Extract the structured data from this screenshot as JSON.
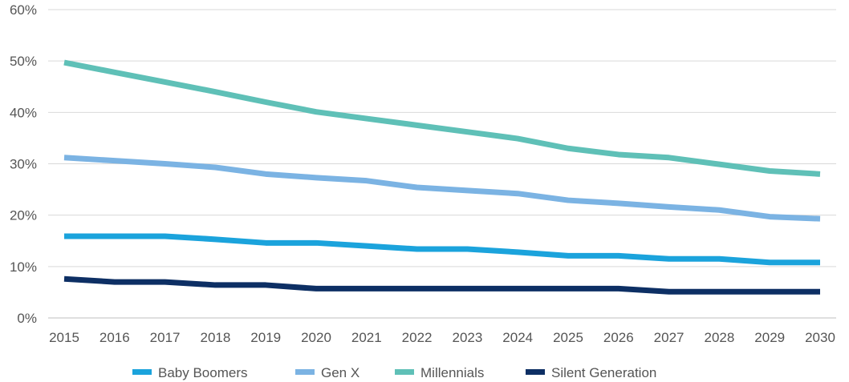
{
  "chart_data": {
    "type": "line",
    "title": "",
    "xlabel": "",
    "ylabel": "",
    "categories": [
      "2015",
      "2016",
      "2017",
      "2018",
      "2019",
      "2020",
      "2021",
      "2022",
      "2023",
      "2024",
      "2025",
      "2026",
      "2027",
      "2028",
      "2029",
      "2030"
    ],
    "ylim": [
      0,
      60
    ],
    "yticks": [
      0,
      10,
      20,
      30,
      40,
      50,
      60
    ],
    "ytick_labels": [
      "0%",
      "10%",
      "20%",
      "30%",
      "40%",
      "50%",
      "60%"
    ],
    "grid": true,
    "legend_position": "bottom",
    "series": [
      {
        "name": "Baby Boomers",
        "color": "#1ba3dc",
        "values": [
          15.9,
          15.9,
          15.9,
          15.3,
          14.6,
          14.6,
          14.0,
          13.4,
          13.4,
          12.8,
          12.1,
          12.1,
          11.5,
          11.5,
          10.8,
          10.8
        ]
      },
      {
        "name": "Gen X",
        "color": "#7bb3e3",
        "values": [
          31.2,
          30.6,
          30.0,
          29.3,
          28.0,
          27.3,
          26.7,
          25.4,
          24.8,
          24.2,
          22.9,
          22.3,
          21.6,
          21.0,
          19.7,
          19.3
        ]
      },
      {
        "name": "Millennials",
        "color": "#5fc0b7",
        "values": [
          49.7,
          47.8,
          45.9,
          44.0,
          42.0,
          40.1,
          38.8,
          37.5,
          36.2,
          34.9,
          33.0,
          31.8,
          31.2,
          29.9,
          28.6,
          28.0
        ]
      },
      {
        "name": "Silent Generation",
        "color": "#0d2f64",
        "values": [
          7.6,
          7.0,
          7.0,
          6.4,
          6.4,
          5.7,
          5.7,
          5.7,
          5.7,
          5.7,
          5.7,
          5.7,
          5.1,
          5.1,
          5.1,
          5.1
        ]
      }
    ]
  }
}
